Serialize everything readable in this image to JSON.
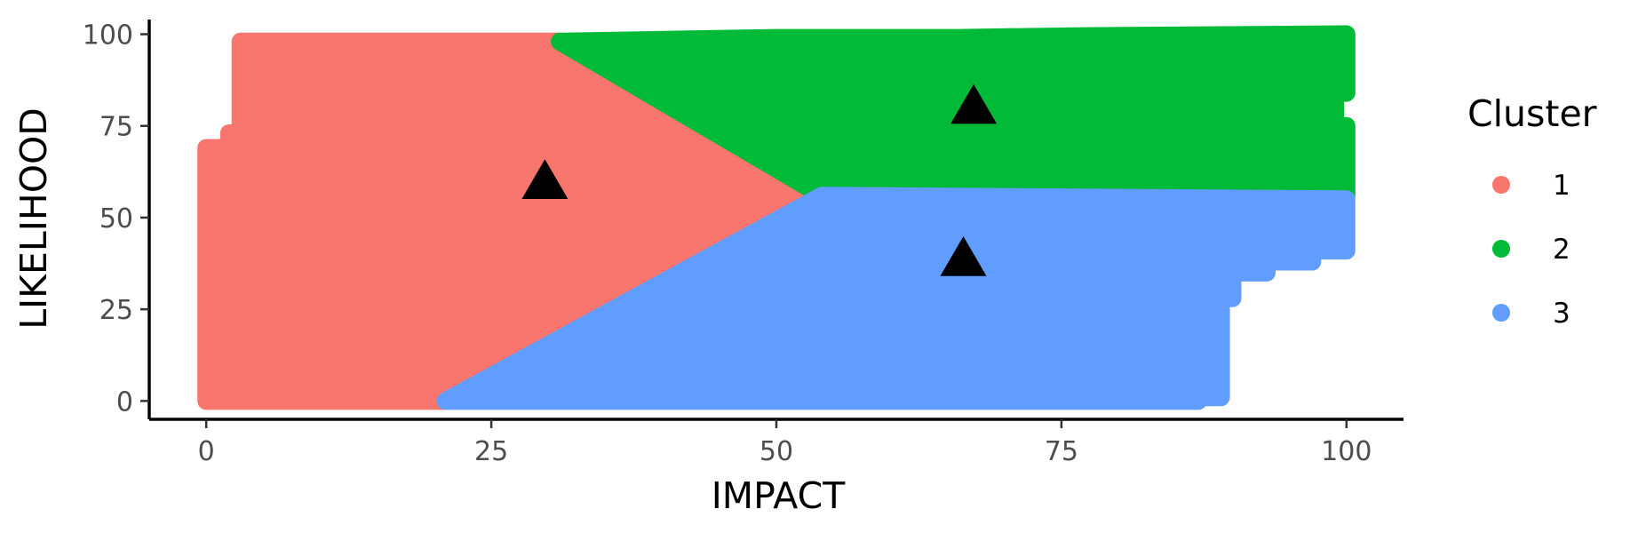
{
  "chart_data": {
    "type": "scatter",
    "title": "",
    "xlabel": "IMPACT",
    "ylabel": "LIKELIHOOD",
    "xlim": [
      -5,
      105
    ],
    "ylim": [
      -5,
      104
    ],
    "x_ticks": [
      0,
      25,
      50,
      75,
      100
    ],
    "y_ticks": [
      0,
      25,
      50,
      75,
      100
    ],
    "grid": false,
    "legend": {
      "title": "Cluster",
      "position": "right",
      "entries": [
        {
          "label": "1",
          "color": "#F8766D"
        },
        {
          "label": "2",
          "color": "#00BA38"
        },
        {
          "label": "3",
          "color": "#619CFF"
        }
      ]
    },
    "series": [
      {
        "name": "1",
        "color": "#F8766D",
        "region_polygon": [
          [
            3,
            98
          ],
          [
            31,
            98
          ],
          [
            54,
            56
          ],
          [
            21,
            0
          ],
          [
            0,
            0
          ],
          [
            0,
            69
          ],
          [
            2,
            69
          ],
          [
            2,
            73
          ],
          [
            3,
            73
          ]
        ]
      },
      {
        "name": "2",
        "color": "#00BA38",
        "region_polygon": [
          [
            31,
            98
          ],
          [
            50,
            99
          ],
          [
            66,
            99
          ],
          [
            77,
            99.5
          ],
          [
            100,
            100
          ],
          [
            100,
            84
          ],
          [
            99,
            84
          ],
          [
            99,
            75
          ],
          [
            100,
            75
          ],
          [
            100,
            56
          ],
          [
            54,
            56
          ]
        ]
      },
      {
        "name": "3",
        "color": "#619CFF",
        "region_polygon": [
          [
            21,
            0
          ],
          [
            54,
            56
          ],
          [
            100,
            55
          ],
          [
            100,
            41
          ],
          [
            97,
            41
          ],
          [
            97,
            38
          ],
          [
            93,
            38
          ],
          [
            93,
            35
          ],
          [
            90,
            35
          ],
          [
            90,
            28
          ],
          [
            89,
            28
          ],
          [
            89,
            1
          ],
          [
            87,
            1
          ],
          [
            87,
            0
          ]
        ]
      }
    ],
    "centroids": [
      {
        "cluster": "1",
        "x": 29.7,
        "y": 59.6
      },
      {
        "cluster": "2",
        "x": 67.3,
        "y": 80.1
      },
      {
        "cluster": "3",
        "x": 66.4,
        "y": 38.6
      }
    ],
    "centroid_marker": "triangle",
    "centroid_color": "#000000"
  }
}
